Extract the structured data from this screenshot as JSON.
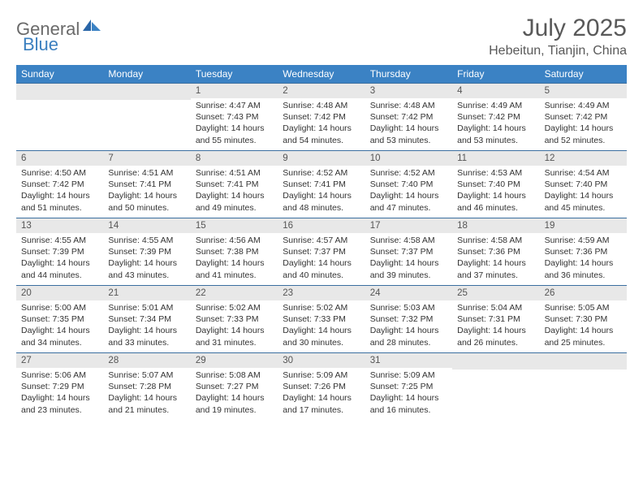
{
  "logo": {
    "text1": "General",
    "text2": "Blue"
  },
  "title": "July 2025",
  "location": "Hebeitun, Tianjin, China",
  "colors": {
    "header_bg": "#3b82c4",
    "header_text": "#ffffff",
    "daynum_bg": "#e8e8e8",
    "row_border": "#3b6fa0",
    "title_color": "#595959",
    "logo_gray": "#6a6a6a",
    "logo_blue": "#3b7fbf"
  },
  "weekdays": [
    "Sunday",
    "Monday",
    "Tuesday",
    "Wednesday",
    "Thursday",
    "Friday",
    "Saturday"
  ],
  "weeks": [
    [
      null,
      null,
      {
        "n": "1",
        "sr": "4:47 AM",
        "ss": "7:43 PM",
        "dl": "14 hours and 55 minutes."
      },
      {
        "n": "2",
        "sr": "4:48 AM",
        "ss": "7:42 PM",
        "dl": "14 hours and 54 minutes."
      },
      {
        "n": "3",
        "sr": "4:48 AM",
        "ss": "7:42 PM",
        "dl": "14 hours and 53 minutes."
      },
      {
        "n": "4",
        "sr": "4:49 AM",
        "ss": "7:42 PM",
        "dl": "14 hours and 53 minutes."
      },
      {
        "n": "5",
        "sr": "4:49 AM",
        "ss": "7:42 PM",
        "dl": "14 hours and 52 minutes."
      }
    ],
    [
      {
        "n": "6",
        "sr": "4:50 AM",
        "ss": "7:42 PM",
        "dl": "14 hours and 51 minutes."
      },
      {
        "n": "7",
        "sr": "4:51 AM",
        "ss": "7:41 PM",
        "dl": "14 hours and 50 minutes."
      },
      {
        "n": "8",
        "sr": "4:51 AM",
        "ss": "7:41 PM",
        "dl": "14 hours and 49 minutes."
      },
      {
        "n": "9",
        "sr": "4:52 AM",
        "ss": "7:41 PM",
        "dl": "14 hours and 48 minutes."
      },
      {
        "n": "10",
        "sr": "4:52 AM",
        "ss": "7:40 PM",
        "dl": "14 hours and 47 minutes."
      },
      {
        "n": "11",
        "sr": "4:53 AM",
        "ss": "7:40 PM",
        "dl": "14 hours and 46 minutes."
      },
      {
        "n": "12",
        "sr": "4:54 AM",
        "ss": "7:40 PM",
        "dl": "14 hours and 45 minutes."
      }
    ],
    [
      {
        "n": "13",
        "sr": "4:55 AM",
        "ss": "7:39 PM",
        "dl": "14 hours and 44 minutes."
      },
      {
        "n": "14",
        "sr": "4:55 AM",
        "ss": "7:39 PM",
        "dl": "14 hours and 43 minutes."
      },
      {
        "n": "15",
        "sr": "4:56 AM",
        "ss": "7:38 PM",
        "dl": "14 hours and 41 minutes."
      },
      {
        "n": "16",
        "sr": "4:57 AM",
        "ss": "7:37 PM",
        "dl": "14 hours and 40 minutes."
      },
      {
        "n": "17",
        "sr": "4:58 AM",
        "ss": "7:37 PM",
        "dl": "14 hours and 39 minutes."
      },
      {
        "n": "18",
        "sr": "4:58 AM",
        "ss": "7:36 PM",
        "dl": "14 hours and 37 minutes."
      },
      {
        "n": "19",
        "sr": "4:59 AM",
        "ss": "7:36 PM",
        "dl": "14 hours and 36 minutes."
      }
    ],
    [
      {
        "n": "20",
        "sr": "5:00 AM",
        "ss": "7:35 PM",
        "dl": "14 hours and 34 minutes."
      },
      {
        "n": "21",
        "sr": "5:01 AM",
        "ss": "7:34 PM",
        "dl": "14 hours and 33 minutes."
      },
      {
        "n": "22",
        "sr": "5:02 AM",
        "ss": "7:33 PM",
        "dl": "14 hours and 31 minutes."
      },
      {
        "n": "23",
        "sr": "5:02 AM",
        "ss": "7:33 PM",
        "dl": "14 hours and 30 minutes."
      },
      {
        "n": "24",
        "sr": "5:03 AM",
        "ss": "7:32 PM",
        "dl": "14 hours and 28 minutes."
      },
      {
        "n": "25",
        "sr": "5:04 AM",
        "ss": "7:31 PM",
        "dl": "14 hours and 26 minutes."
      },
      {
        "n": "26",
        "sr": "5:05 AM",
        "ss": "7:30 PM",
        "dl": "14 hours and 25 minutes."
      }
    ],
    [
      {
        "n": "27",
        "sr": "5:06 AM",
        "ss": "7:29 PM",
        "dl": "14 hours and 23 minutes."
      },
      {
        "n": "28",
        "sr": "5:07 AM",
        "ss": "7:28 PM",
        "dl": "14 hours and 21 minutes."
      },
      {
        "n": "29",
        "sr": "5:08 AM",
        "ss": "7:27 PM",
        "dl": "14 hours and 19 minutes."
      },
      {
        "n": "30",
        "sr": "5:09 AM",
        "ss": "7:26 PM",
        "dl": "14 hours and 17 minutes."
      },
      {
        "n": "31",
        "sr": "5:09 AM",
        "ss": "7:25 PM",
        "dl": "14 hours and 16 minutes."
      },
      null,
      null
    ]
  ],
  "labels": {
    "sunrise": "Sunrise:",
    "sunset": "Sunset:",
    "daylight": "Daylight:"
  }
}
